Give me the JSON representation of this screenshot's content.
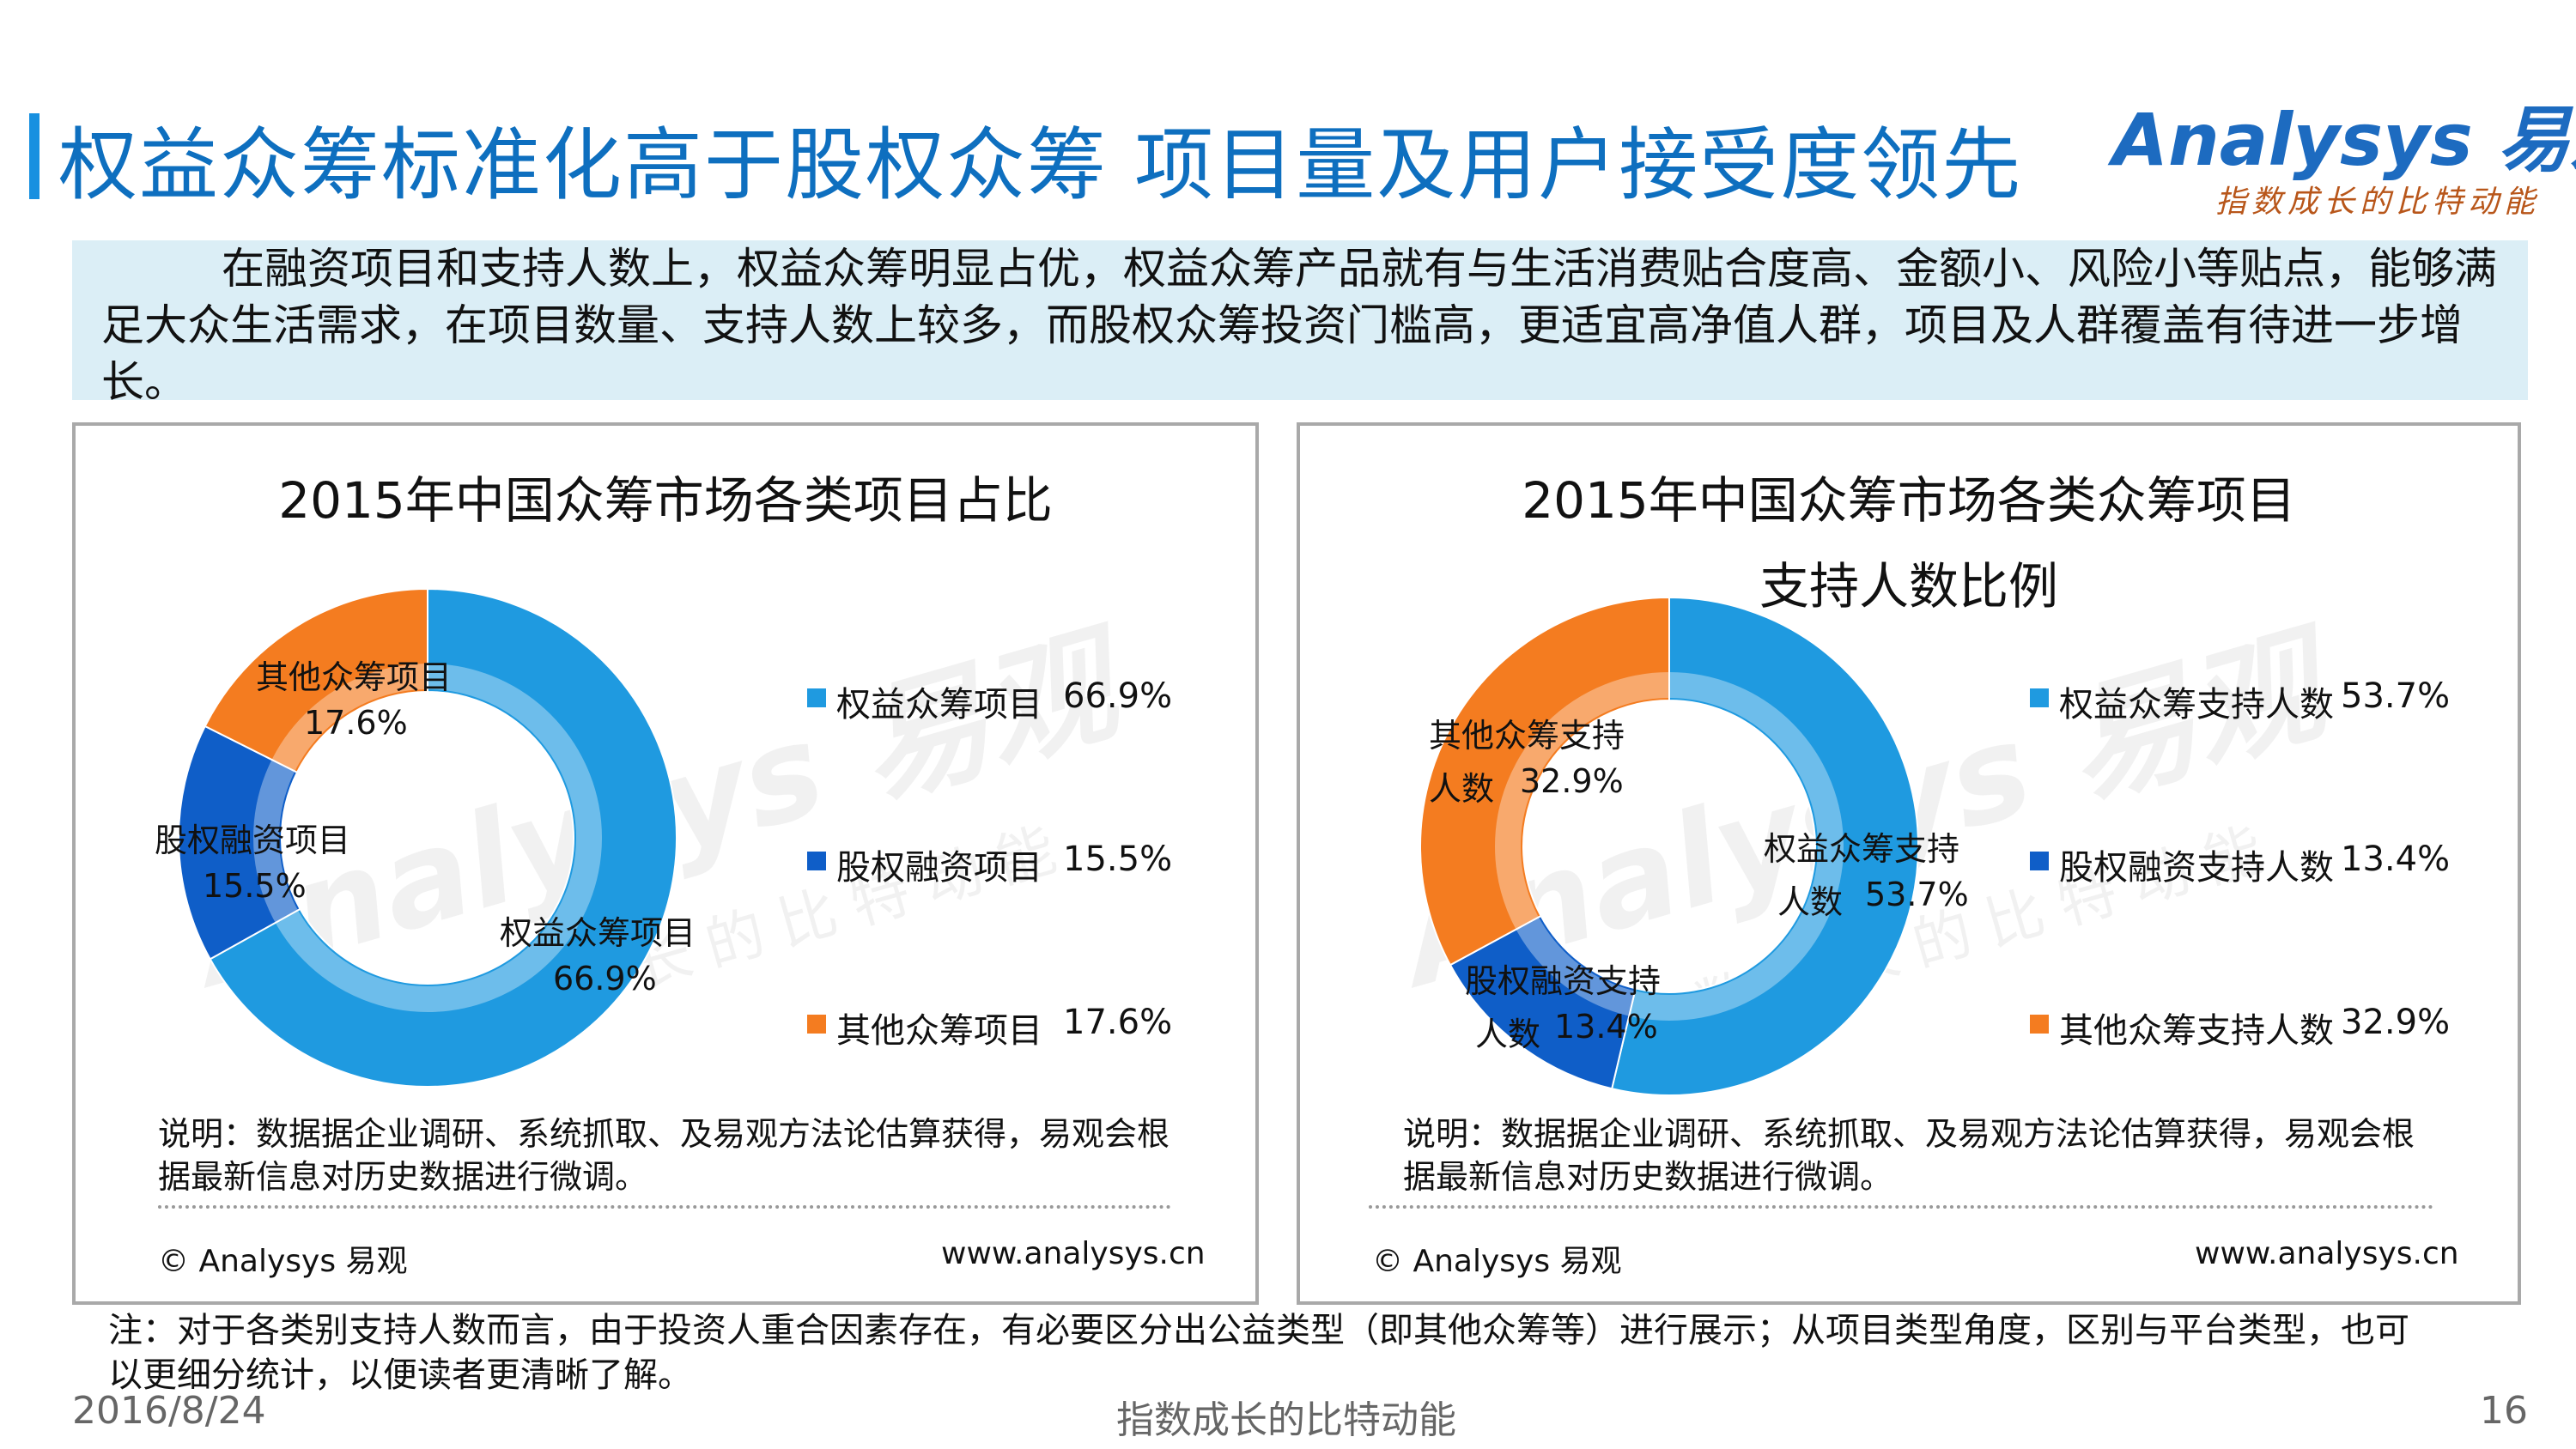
{
  "header": {
    "title": "权益众筹标准化高于股权众筹  项目量及用户接受度领先",
    "logo_brand": "Analysys 易观",
    "logo_slogan": "指数成长的比特动能"
  },
  "summary": "在融资项目和支持人数上，权益众筹明显占优，权益众筹产品就有与生活消费贴合度高、金额小、风险小等贴点，能够满足大众生活需求，在项目数量、支持人数上较多，而股权众筹投资门槛高，更适宜高净值人群，项目及人群覆盖有待进一步增长。",
  "charts": [
    {
      "title_line1": "2015年中国众筹市场各类项目占比",
      "title_line2": "",
      "note": "说明：数据据企业调研、系统抓取、及易观方法论估算获得，易观会根据最新信息对历史数据进行微调。",
      "source_left": "© Analysys 易观",
      "source_right": "www.analysys.cn",
      "labels": [
        {
          "name": "权益众筹项目",
          "value": "66.9%"
        },
        {
          "name": "股权融资项目",
          "value": "15.5%"
        },
        {
          "name": "其他众筹项目",
          "value": "17.6%"
        }
      ],
      "legend": [
        {
          "name": "权益众筹项目",
          "value": "66.9%"
        },
        {
          "name": "股权融资项目",
          "value": "15.5%"
        },
        {
          "name": "其他众筹项目",
          "value": "17.6%"
        }
      ]
    },
    {
      "title_line1": "2015年中国众筹市场各类众筹项目",
      "title_line2": "支持人数比例",
      "note": "说明：数据据企业调研、系统抓取、及易观方法论估算获得，易观会根据最新信息对历史数据进行微调。",
      "source_left": "© Analysys 易观",
      "source_right": "www.analysys.cn",
      "labels": [
        {
          "name": "权益众筹支持",
          "name2": "人数",
          "value": "53.7%"
        },
        {
          "name": "股权融资支持",
          "name2": "人数",
          "value": "13.4%"
        },
        {
          "name": "其他众筹支持",
          "name2": "人数",
          "value": "32.9%"
        }
      ],
      "legend": [
        {
          "name": "权益众筹支持人数",
          "value": "53.7%"
        },
        {
          "name": "股权融资支持人数",
          "value": "13.4%"
        },
        {
          "name": "其他众筹支持人数",
          "value": "32.9%"
        }
      ]
    }
  ],
  "chart_data": [
    {
      "type": "pie",
      "title": "2015年中国众筹市场各类项目占比",
      "categories": [
        "权益众筹项目",
        "股权融资项目",
        "其他众筹项目"
      ],
      "values": [
        66.9,
        15.5,
        17.6
      ],
      "colors": [
        "#1f9ae0",
        "#0f5ec8",
        "#f47c20"
      ],
      "legend_position": "right"
    },
    {
      "type": "pie",
      "title": "2015年中国众筹市场各类众筹项目支持人数比例",
      "categories": [
        "权益众筹支持人数",
        "股权融资支持人数",
        "其他众筹支持人数"
      ],
      "values": [
        53.7,
        13.4,
        32.9
      ],
      "colors": [
        "#1f9ae0",
        "#0f5ec8",
        "#f47c20"
      ],
      "legend_position": "right"
    }
  ],
  "footnote": "注：对于各类别支持人数而言，由于投资人重合因素存在，有必要区分出公益类型（即其他众筹等）进行展示；从项目类型角度，区别与平台类型，也可以更细分统计，以便读者更清晰了解。",
  "footer": {
    "date": "2016/8/24",
    "center": "指数成长的比特动能",
    "page": "16"
  }
}
